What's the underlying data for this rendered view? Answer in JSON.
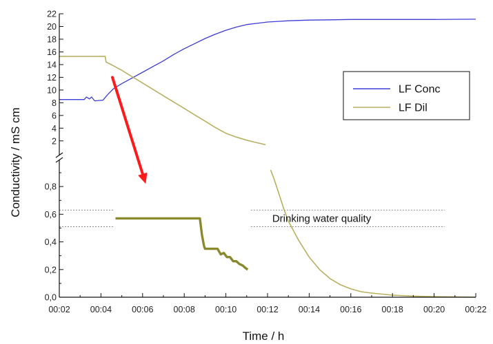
{
  "chart_data": {
    "type": "line",
    "xlabel": "Time / h",
    "ylabel": "Conductivity / mS cm",
    "x_ticks": [
      "00:02",
      "00:04",
      "00:06",
      "00:08",
      "00:10",
      "00:12",
      "00:14",
      "00:16",
      "00:18",
      "00:20",
      "00:22"
    ],
    "x_range_minutes": [
      2,
      22
    ],
    "axis_break": true,
    "y_upper_ticks": [
      "2",
      "4",
      "6",
      "8",
      "10",
      "12",
      "14",
      "16",
      "18",
      "20",
      "22"
    ],
    "y_upper_range": [
      1,
      22
    ],
    "y_lower_ticks": [
      "0,0",
      "0,2",
      "0,4",
      "0,6",
      "0,8"
    ],
    "y_lower_range": [
      0,
      0.95
    ],
    "legend": {
      "position": "right",
      "entries": [
        {
          "label": "LF Conc",
          "color": "#3b3bd6"
        },
        {
          "label": "LF Dil",
          "color": "#b8b060"
        }
      ]
    },
    "series": [
      {
        "name": "LF Conc",
        "color": "#3b3bd6",
        "segment": "upper",
        "x": [
          2.0,
          3.2,
          3.3,
          3.45,
          3.55,
          3.7,
          4.1,
          4.3,
          4.6,
          5.0,
          5.5,
          6.0,
          6.5,
          7.0,
          7.5,
          8.0,
          8.5,
          9.0,
          9.5,
          10.0,
          10.5,
          11.0,
          11.5,
          12.0,
          12.5,
          13.0,
          14.0,
          15.0,
          16.0,
          18.0,
          20.0,
          22.0
        ],
        "y": [
          8.5,
          8.5,
          8.9,
          8.6,
          8.9,
          8.3,
          8.4,
          9.2,
          10.2,
          11.0,
          11.9,
          12.8,
          13.7,
          14.6,
          15.6,
          16.5,
          17.3,
          18.1,
          18.8,
          19.4,
          19.9,
          20.3,
          20.5,
          20.7,
          20.8,
          20.9,
          21.0,
          21.05,
          21.1,
          21.1,
          21.1,
          21.15
        ]
      },
      {
        "name": "LF Dil",
        "color": "#b8b060",
        "segment": "upper",
        "x": [
          2.0,
          4.2,
          4.25,
          4.5,
          5.0,
          5.5,
          6.0,
          6.5,
          7.0,
          7.5,
          8.0,
          8.5,
          9.0,
          9.5,
          10.0,
          10.5,
          11.0,
          11.5,
          11.9
        ],
        "y": [
          15.3,
          15.3,
          14.4,
          14.0,
          13.1,
          12.1,
          11.1,
          10.1,
          9.1,
          8.1,
          7.1,
          6.1,
          5.1,
          4.1,
          3.2,
          2.6,
          2.1,
          1.7,
          1.4
        ]
      },
      {
        "name": "LF Dil",
        "color": "#b8b060",
        "segment": "lower",
        "x": [
          12.15,
          12.3,
          12.5,
          12.8,
          13.0,
          13.5,
          14.0,
          14.5,
          15.0,
          15.5,
          16.0,
          16.5,
          17.0,
          18.0,
          19.0,
          20.0,
          21.0,
          22.0
        ],
        "y": [
          0.92,
          0.86,
          0.77,
          0.63,
          0.55,
          0.41,
          0.29,
          0.2,
          0.135,
          0.09,
          0.06,
          0.04,
          0.03,
          0.015,
          0.008,
          0.004,
          0.002,
          0.0
        ]
      },
      {
        "name": "",
        "color": "#8a8a2c",
        "segment": "lower",
        "x": [
          4.7,
          8.75,
          8.8,
          8.85,
          8.9,
          8.95,
          9.0,
          9.6,
          9.75,
          9.9,
          10.05,
          10.2,
          10.35,
          10.5,
          10.65,
          10.8,
          10.95,
          11.05
        ],
        "y": [
          0.57,
          0.57,
          0.51,
          0.45,
          0.41,
          0.37,
          0.35,
          0.35,
          0.31,
          0.32,
          0.29,
          0.29,
          0.26,
          0.26,
          0.24,
          0.23,
          0.21,
          0.2
        ]
      }
    ],
    "reference_lines": [
      {
        "y": 0.63,
        "x_segments": [
          [
            2.0,
            4.6
          ],
          [
            11.2,
            20.5
          ]
        ]
      },
      {
        "y": 0.51,
        "x_segments": [
          [
            2.0,
            4.6
          ],
          [
            11.2,
            20.5
          ]
        ]
      }
    ],
    "annotations": [
      {
        "text": "Drinking water quality",
        "x": 14.6,
        "y": 0.57,
        "segment": "lower"
      }
    ],
    "arrow": {
      "color": "#ff1a1a",
      "from": {
        "x": 4.55,
        "y": 12.0,
        "segment": "upper"
      },
      "to": {
        "x": 6.15,
        "y": 0.82,
        "segment": "lower"
      }
    }
  }
}
